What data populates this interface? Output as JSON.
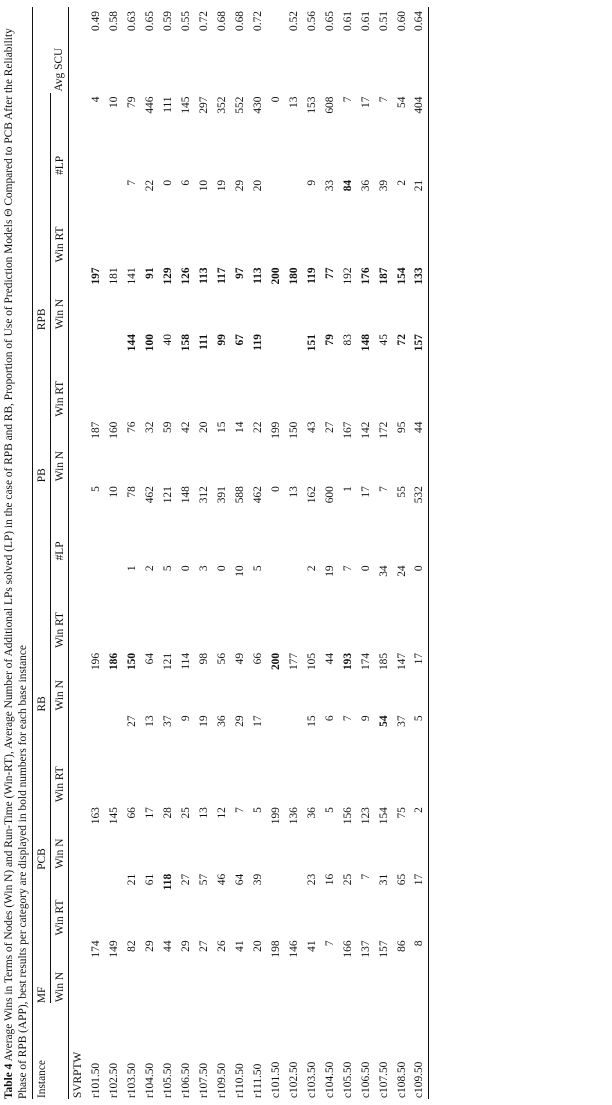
{
  "caption": {
    "label": "Table 4",
    "text": "Average Wins in Terms of Nodes (Win N) and Run-Time (Win-RT), Average Number of Additional LPs solved (LP) in the case of RPB and RB, Proportion of Use of Prediction Models Θ Compared to PCB After the Reliability Phase of RPB (APP), best results per category are displayed in bold numbers for each base instance"
  },
  "headers": {
    "instance": "Instance",
    "groups": [
      "MF",
      "PCB",
      "RB",
      "PB",
      "RPB"
    ],
    "win_n": "Win N",
    "win_rt": "Win RT",
    "lp": "#LP",
    "avg_scu": "Avg SCU"
  },
  "section_label": "SVRPTW",
  "rows": [
    {
      "inst": "r101.50",
      "c": [
        {
          "v": "174"
        },
        {
          "v": ""
        },
        {
          "v": "163"
        },
        {
          "v": ""
        },
        {
          "v": "196"
        },
        {
          "v": ""
        },
        {
          "v": "5"
        },
        {
          "v": "187"
        },
        {
          "v": ""
        },
        {
          "v": "197",
          "b": true
        },
        {
          "v": ""
        },
        {
          "v": "4"
        },
        {
          "v": "0.49"
        }
      ]
    },
    {
      "inst": "r102.50",
      "c": [
        {
          "v": "149"
        },
        {
          "v": ""
        },
        {
          "v": "145"
        },
        {
          "v": ""
        },
        {
          "v": "186",
          "b": true
        },
        {
          "v": ""
        },
        {
          "v": "10"
        },
        {
          "v": "160"
        },
        {
          "v": ""
        },
        {
          "v": "181"
        },
        {
          "v": ""
        },
        {
          "v": "10"
        },
        {
          "v": "0.58"
        }
      ]
    },
    {
      "inst": "r103.50",
      "c": [
        {
          "v": "82"
        },
        {
          "v": "21"
        },
        {
          "v": "66"
        },
        {
          "v": "27"
        },
        {
          "v": "150",
          "b": true
        },
        {
          "v": "1"
        },
        {
          "v": "78"
        },
        {
          "v": "76"
        },
        {
          "v": "144",
          "b": true
        },
        {
          "v": "141"
        },
        {
          "v": "7"
        },
        {
          "v": "79"
        },
        {
          "v": "0.63"
        }
      ]
    },
    {
      "inst": "r104.50",
      "c": [
        {
          "v": "29"
        },
        {
          "v": "61"
        },
        {
          "v": "17"
        },
        {
          "v": "13"
        },
        {
          "v": "64"
        },
        {
          "v": "2"
        },
        {
          "v": "462"
        },
        {
          "v": "32"
        },
        {
          "v": "100",
          "b": true
        },
        {
          "v": "91",
          "b": true
        },
        {
          "v": "22"
        },
        {
          "v": "446"
        },
        {
          "v": "0.65"
        }
      ]
    },
    {
      "inst": "r105.50",
      "c": [
        {
          "v": "44"
        },
        {
          "v": "118",
          "b": true
        },
        {
          "v": "28"
        },
        {
          "v": "37"
        },
        {
          "v": "121"
        },
        {
          "v": "5"
        },
        {
          "v": "121"
        },
        {
          "v": "59"
        },
        {
          "v": "40"
        },
        {
          "v": "129",
          "b": true
        },
        {
          "v": "0"
        },
        {
          "v": "111"
        },
        {
          "v": "0.59"
        }
      ]
    },
    {
      "inst": "r106.50",
      "c": [
        {
          "v": "29"
        },
        {
          "v": "27"
        },
        {
          "v": "25"
        },
        {
          "v": "9"
        },
        {
          "v": "114"
        },
        {
          "v": "0"
        },
        {
          "v": "148"
        },
        {
          "v": "42"
        },
        {
          "v": "158",
          "b": true
        },
        {
          "v": "126",
          "b": true
        },
        {
          "v": "6"
        },
        {
          "v": "145"
        },
        {
          "v": "0.55"
        }
      ]
    },
    {
      "inst": "r107.50",
      "c": [
        {
          "v": "27"
        },
        {
          "v": "57"
        },
        {
          "v": "13"
        },
        {
          "v": "19"
        },
        {
          "v": "98"
        },
        {
          "v": "3"
        },
        {
          "v": "312"
        },
        {
          "v": "20"
        },
        {
          "v": "111",
          "b": true
        },
        {
          "v": "113",
          "b": true
        },
        {
          "v": "10"
        },
        {
          "v": "297"
        },
        {
          "v": "0.72"
        }
      ]
    },
    {
      "inst": "r109.50",
      "c": [
        {
          "v": "26"
        },
        {
          "v": "46"
        },
        {
          "v": "12"
        },
        {
          "v": "36"
        },
        {
          "v": "56"
        },
        {
          "v": "0"
        },
        {
          "v": "391"
        },
        {
          "v": "15"
        },
        {
          "v": "99",
          "b": true
        },
        {
          "v": "117",
          "b": true
        },
        {
          "v": "19"
        },
        {
          "v": "352"
        },
        {
          "v": "0.68"
        }
      ]
    },
    {
      "inst": "r110.50",
      "c": [
        {
          "v": "41"
        },
        {
          "v": "64"
        },
        {
          "v": "7"
        },
        {
          "v": "29"
        },
        {
          "v": "49"
        },
        {
          "v": "10"
        },
        {
          "v": "588"
        },
        {
          "v": "14"
        },
        {
          "v": "67",
          "b": true
        },
        {
          "v": "97",
          "b": true
        },
        {
          "v": "29"
        },
        {
          "v": "552"
        },
        {
          "v": "0.68"
        }
      ]
    },
    {
      "inst": "r111.50",
      "c": [
        {
          "v": "20"
        },
        {
          "v": "39"
        },
        {
          "v": "5"
        },
        {
          "v": "17"
        },
        {
          "v": "66"
        },
        {
          "v": "5"
        },
        {
          "v": "462"
        },
        {
          "v": "22"
        },
        {
          "v": "119",
          "b": true
        },
        {
          "v": "113",
          "b": true
        },
        {
          "v": "20"
        },
        {
          "v": "430"
        },
        {
          "v": "0.72"
        }
      ]
    },
    {
      "inst": "c101.50",
      "c": [
        {
          "v": "198"
        },
        {
          "v": ""
        },
        {
          "v": "199"
        },
        {
          "v": ""
        },
        {
          "v": "200",
          "b": true
        },
        {
          "v": ""
        },
        {
          "v": "0"
        },
        {
          "v": "199"
        },
        {
          "v": ""
        },
        {
          "v": "200",
          "b": true
        },
        {
          "v": ""
        },
        {
          "v": "0"
        },
        {
          "v": ""
        }
      ]
    },
    {
      "inst": "c102.50",
      "c": [
        {
          "v": "146"
        },
        {
          "v": ""
        },
        {
          "v": "136"
        },
        {
          "v": ""
        },
        {
          "v": "177"
        },
        {
          "v": ""
        },
        {
          "v": "13"
        },
        {
          "v": "150"
        },
        {
          "v": ""
        },
        {
          "v": "180",
          "b": true
        },
        {
          "v": ""
        },
        {
          "v": "13"
        },
        {
          "v": "0.52"
        }
      ]
    },
    {
      "inst": "c103.50",
      "c": [
        {
          "v": "41"
        },
        {
          "v": "23"
        },
        {
          "v": "36"
        },
        {
          "v": "15"
        },
        {
          "v": "105"
        },
        {
          "v": "2"
        },
        {
          "v": "162"
        },
        {
          "v": "43"
        },
        {
          "v": "151",
          "b": true
        },
        {
          "v": "119",
          "b": true
        },
        {
          "v": "9"
        },
        {
          "v": "153"
        },
        {
          "v": "0.56"
        }
      ]
    },
    {
      "inst": "c104.50",
      "c": [
        {
          "v": "7"
        },
        {
          "v": "16"
        },
        {
          "v": "5"
        },
        {
          "v": "6"
        },
        {
          "v": "44"
        },
        {
          "v": "19"
        },
        {
          "v": "600"
        },
        {
          "v": "27"
        },
        {
          "v": "79",
          "b": true
        },
        {
          "v": "77",
          "b": true
        },
        {
          "v": "33"
        },
        {
          "v": "608"
        },
        {
          "v": "0.65"
        }
      ]
    },
    {
      "inst": "c105.50",
      "c": [
        {
          "v": "166"
        },
        {
          "v": "25"
        },
        {
          "v": "156"
        },
        {
          "v": "7"
        },
        {
          "v": "193",
          "b": true
        },
        {
          "v": "7"
        },
        {
          "v": "1"
        },
        {
          "v": "167"
        },
        {
          "v": "83"
        },
        {
          "v": "192"
        },
        {
          "v": "84",
          "b": true
        },
        {
          "v": "7"
        },
        {
          "v": "0.61"
        }
      ]
    },
    {
      "inst": "c106.50",
      "c": [
        {
          "v": "137"
        },
        {
          "v": "7"
        },
        {
          "v": "123"
        },
        {
          "v": "9"
        },
        {
          "v": "174"
        },
        {
          "v": "0"
        },
        {
          "v": "17"
        },
        {
          "v": "142"
        },
        {
          "v": "148",
          "b": true
        },
        {
          "v": "176",
          "b": true
        },
        {
          "v": "36"
        },
        {
          "v": "17"
        },
        {
          "v": "0.61"
        }
      ]
    },
    {
      "inst": "c107.50",
      "c": [
        {
          "v": "157"
        },
        {
          "v": "31"
        },
        {
          "v": "154"
        },
        {
          "v": "54",
          "b": true
        },
        {
          "v": "185"
        },
        {
          "v": "34"
        },
        {
          "v": "7"
        },
        {
          "v": "172"
        },
        {
          "v": "45"
        },
        {
          "v": "187",
          "b": true
        },
        {
          "v": "39"
        },
        {
          "v": "7"
        },
        {
          "v": "0.51"
        }
      ]
    },
    {
      "inst": "c108.50",
      "c": [
        {
          "v": "86"
        },
        {
          "v": "65"
        },
        {
          "v": "75"
        },
        {
          "v": "37"
        },
        {
          "v": "147"
        },
        {
          "v": "24"
        },
        {
          "v": "55"
        },
        {
          "v": "95"
        },
        {
          "v": "72",
          "b": true
        },
        {
          "v": "154",
          "b": true
        },
        {
          "v": "2"
        },
        {
          "v": "54"
        },
        {
          "v": "0.60"
        }
      ]
    },
    {
      "inst": "c109.50",
      "c": [
        {
          "v": "8"
        },
        {
          "v": "17"
        },
        {
          "v": "2"
        },
        {
          "v": "5"
        },
        {
          "v": "17"
        },
        {
          "v": "0"
        },
        {
          "v": "532"
        },
        {
          "v": "44"
        },
        {
          "v": "157",
          "b": true
        },
        {
          "v": "133",
          "b": true
        },
        {
          "v": "21"
        },
        {
          "v": "404"
        },
        {
          "v": "0.64"
        }
      ]
    }
  ]
}
